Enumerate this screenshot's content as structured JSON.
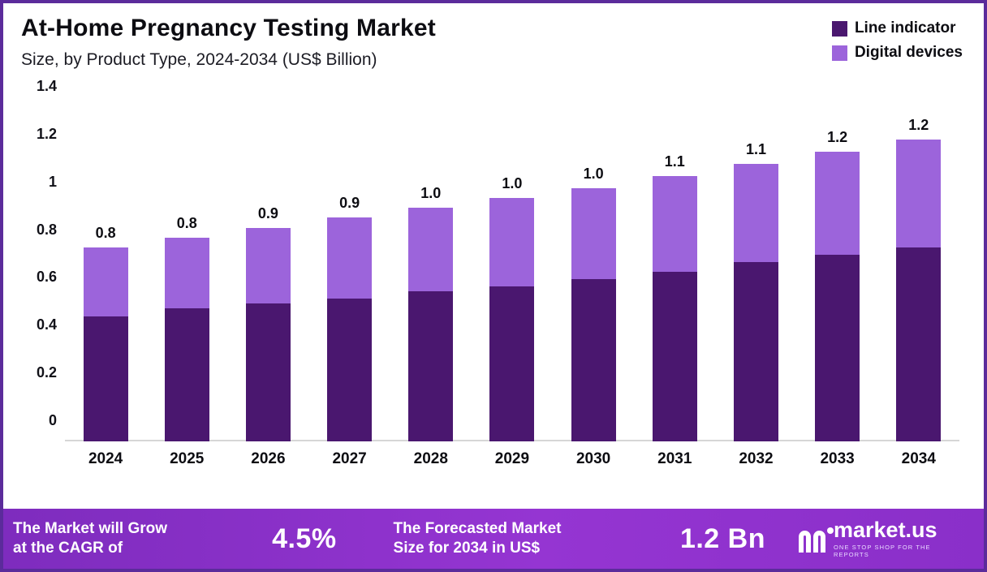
{
  "header": {
    "title": "At-Home Pregnancy Testing Market",
    "subtitle": "Size, by Product Type, 2024-2034 (US$ Billion)"
  },
  "legend": {
    "items": [
      {
        "label": "Line indicator",
        "color": "#4a176f"
      },
      {
        "label": "Digital devices",
        "color": "#9c64db"
      }
    ]
  },
  "chart_data": {
    "type": "bar",
    "stacked": true,
    "title": "At-Home Pregnancy Testing Market",
    "xlabel": "",
    "ylabel": "US$ Billion",
    "ylim": [
      0,
      1.4
    ],
    "y_ticks": [
      "1.4",
      "1.2",
      "1",
      "0.8",
      "0.6",
      "0.4",
      "0.2",
      "0"
    ],
    "categories": [
      "2024",
      "2025",
      "2026",
      "2027",
      "2028",
      "2029",
      "2030",
      "2031",
      "2032",
      "2033",
      "2034"
    ],
    "series": [
      {
        "name": "Line indicator",
        "color": "#4a176f",
        "values": [
          0.51,
          0.54,
          0.56,
          0.58,
          0.61,
          0.63,
          0.66,
          0.69,
          0.73,
          0.76,
          0.79
        ]
      },
      {
        "name": "Digital devices",
        "color": "#9c64db",
        "values": [
          0.28,
          0.29,
          0.31,
          0.33,
          0.34,
          0.36,
          0.37,
          0.39,
          0.4,
          0.42,
          0.44
        ]
      }
    ],
    "total_labels": [
      "0.8",
      "0.8",
      "0.9",
      "0.9",
      "1.0",
      "1.0",
      "1.0",
      "1.1",
      "1.1",
      "1.2",
      "1.2"
    ],
    "legend_position": "top-right",
    "grid": false
  },
  "footer": {
    "cagr_label_line1": "The Market will Grow",
    "cagr_label_line2": "at the CAGR of",
    "cagr_value": "4.5%",
    "forecast_label_line1": "The Forecasted Market",
    "forecast_label_line2": "Size for 2034 in US$",
    "forecast_value": "1.2 Bn",
    "brand_name": "market.us",
    "brand_tagline": "One Stop Shop For The Reports",
    "banner_color": "#8a2fc9"
  }
}
